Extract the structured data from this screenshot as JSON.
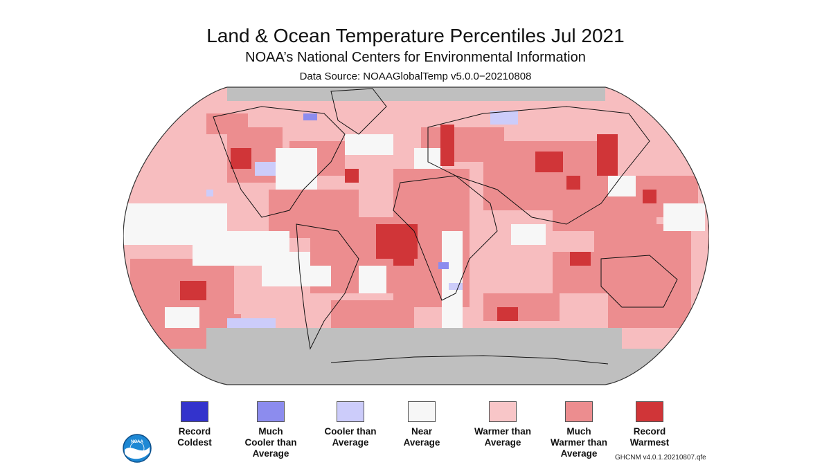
{
  "title": "Land & Ocean Temperature Percentiles Jul 2021",
  "subtitle": "NOAA’s National Centers for Environmental Information",
  "source": "Data Source: NOAAGlobalTemp v5.0.0−20210808",
  "legend": [
    {
      "label": "Record\nColdest",
      "color": "#3333cc"
    },
    {
      "label": "Much\nCooler than\nAverage",
      "color": "#8c8cee"
    },
    {
      "label": "Cooler than\nAverage",
      "color": "#ccccfa"
    },
    {
      "label": "Near\nAverage",
      "color": "#f7f7f7"
    },
    {
      "label": "Warmer than\nAverage",
      "color": "#f8c6c8"
    },
    {
      "label": "Much\nWarmer than\nAverage",
      "color": "#ec8d8f"
    },
    {
      "label": "Record\nWarmest",
      "color": "#d03538"
    }
  ],
  "logo_text": "NOAA",
  "version": "GHCNM v4.0.1.20210807.qfe",
  "map": {
    "background_color": "#f7bdbf",
    "missing_color": "#bfbfbf",
    "coast_color": "#111111"
  }
}
